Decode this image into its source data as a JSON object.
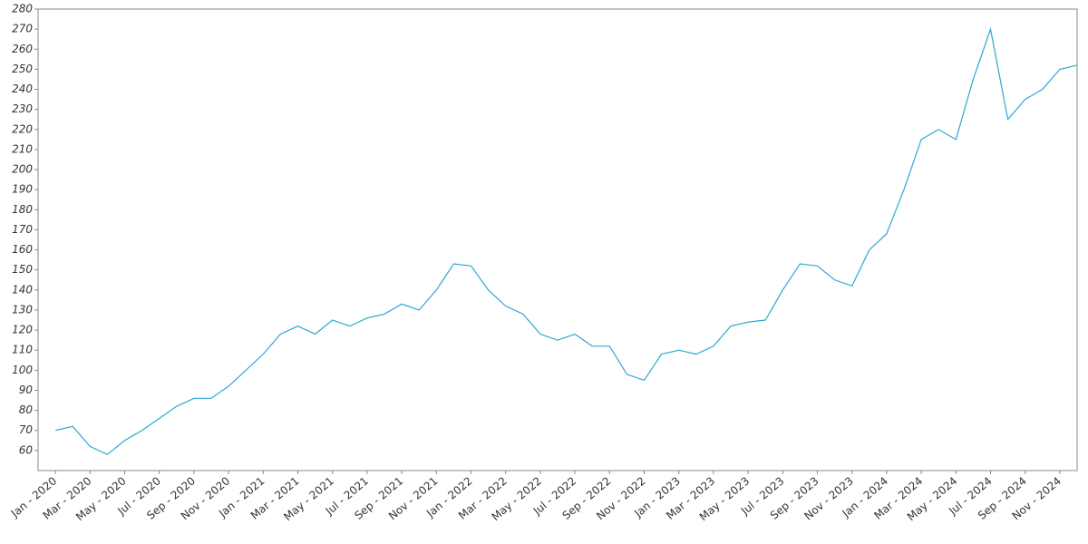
{
  "chart_data": {
    "type": "line",
    "x": [
      "2020-01",
      "2020-02",
      "2020-03",
      "2020-04",
      "2020-05",
      "2020-06",
      "2020-07",
      "2020-08",
      "2020-09",
      "2020-10",
      "2020-11",
      "2020-12",
      "2021-01",
      "2021-02",
      "2021-03",
      "2021-04",
      "2021-05",
      "2021-06",
      "2021-07",
      "2021-08",
      "2021-09",
      "2021-10",
      "2021-11",
      "2021-12",
      "2022-01",
      "2022-02",
      "2022-03",
      "2022-04",
      "2022-05",
      "2022-06",
      "2022-07",
      "2022-08",
      "2022-09",
      "2022-10",
      "2022-11",
      "2022-12",
      "2023-01",
      "2023-02",
      "2023-03",
      "2023-04",
      "2023-05",
      "2023-06",
      "2023-07",
      "2023-08",
      "2023-09",
      "2023-10",
      "2023-11",
      "2023-12",
      "2024-01",
      "2024-02",
      "2024-03",
      "2024-04",
      "2024-05",
      "2024-06",
      "2024-07",
      "2024-08",
      "2024-09",
      "2024-10",
      "2024-11",
      "2024-12"
    ],
    "series": [
      {
        "color": "#2aa9d2",
        "values": [
          70,
          72,
          62,
          58,
          65,
          70,
          76,
          82,
          86,
          86,
          92,
          100,
          108,
          118,
          122,
          118,
          125,
          122,
          126,
          128,
          133,
          130,
          140,
          153,
          152,
          140,
          132,
          128,
          118,
          115,
          118,
          112,
          112,
          98,
          95,
          108,
          110,
          108,
          112,
          122,
          124,
          125,
          140,
          153,
          152,
          145,
          142,
          160,
          168,
          190,
          215,
          220,
          215,
          245,
          270,
          225,
          235,
          240,
          250,
          252
        ]
      }
    ],
    "xlim": [
      "2019-12",
      "2024-12"
    ],
    "xticks": [
      {
        "value": "2020-01",
        "label": "Jan - 2020"
      },
      {
        "value": "2020-03",
        "label": "Mar - 2020"
      },
      {
        "value": "2020-05",
        "label": "May - 2020"
      },
      {
        "value": "2020-07",
        "label": "Jul - 2020"
      },
      {
        "value": "2020-09",
        "label": "Sep - 2020"
      },
      {
        "value": "2020-11",
        "label": "Nov - 2020"
      },
      {
        "value": "2021-01",
        "label": "Jan - 2021"
      },
      {
        "value": "2021-03",
        "label": "Mar - 2021"
      },
      {
        "value": "2021-05",
        "label": "May - 2021"
      },
      {
        "value": "2021-07",
        "label": "Jul - 2021"
      },
      {
        "value": "2021-09",
        "label": "Sep - 2021"
      },
      {
        "value": "2021-11",
        "label": "Nov - 2021"
      },
      {
        "value": "2022-01",
        "label": "Jan - 2022"
      },
      {
        "value": "2022-03",
        "label": "Mar - 2022"
      },
      {
        "value": "2022-05",
        "label": "May - 2022"
      },
      {
        "value": "2022-07",
        "label": "Jul - 2022"
      },
      {
        "value": "2022-09",
        "label": "Sep - 2022"
      },
      {
        "value": "2022-11",
        "label": "Nov - 2022"
      },
      {
        "value": "2023-01",
        "label": "Jan - 2023"
      },
      {
        "value": "2023-03",
        "label": "Mar - 2023"
      },
      {
        "value": "2023-05",
        "label": "May - 2023"
      },
      {
        "value": "2023-07",
        "label": "Jul - 2023"
      },
      {
        "value": "2023-09",
        "label": "Sep - 2023"
      },
      {
        "value": "2023-11",
        "label": "Nov - 2023"
      },
      {
        "value": "2024-01",
        "label": "Jan - 2024"
      },
      {
        "value": "2024-03",
        "label": "Mar - 2024"
      },
      {
        "value": "2024-05",
        "label": "May - 2024"
      },
      {
        "value": "2024-07",
        "label": "Jul - 2024"
      },
      {
        "value": "2024-09",
        "label": "Sep - 2024"
      },
      {
        "value": "2024-11",
        "label": "Nov - 2024"
      }
    ],
    "ylim": [
      50,
      280
    ],
    "yticks": [
      60,
      70,
      80,
      90,
      100,
      110,
      120,
      130,
      140,
      150,
      160,
      170,
      180,
      190,
      200,
      210,
      220,
      230,
      240,
      250,
      260,
      270,
      280
    ],
    "grid": false
  }
}
